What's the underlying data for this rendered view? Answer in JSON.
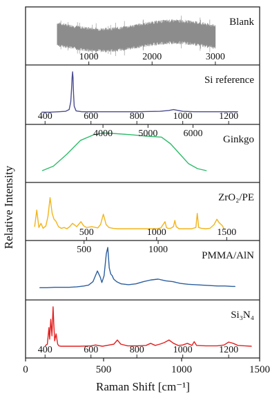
{
  "chart_data": {
    "type": "line",
    "ylabel": "Relative Intensity",
    "xlabel": "Raman Shift [cm⁻¹]",
    "bottom_axis": {
      "ticks": [
        0,
        500,
        1000,
        1500
      ],
      "xlim": [
        0,
        1500
      ]
    },
    "panels": [
      {
        "name": "Blank",
        "label": "Blank",
        "color": "#8c8c8c",
        "style": "noise",
        "top_ticks": [],
        "bottom_ticks": [
          1000,
          2000,
          3000
        ],
        "xlim": [
          0,
          3700
        ],
        "x_range": [
          500,
          3000
        ],
        "ylim": [
          0,
          1
        ]
      },
      {
        "name": "Si reference",
        "label": "Si reference",
        "color": "#4b4b8f",
        "top_ticks": [],
        "bottom_ticks": [
          400,
          600,
          800,
          1000,
          1200
        ],
        "xlim": [
          315,
          1335
        ],
        "ylim": [
          0,
          1
        ],
        "x": [
          385,
          420,
          460,
          490,
          505,
          512,
          516,
          518,
          520,
          522,
          524,
          527,
          535,
          560,
          600,
          700,
          800,
          900,
          940,
          960,
          980,
          1000,
          1050,
          1100,
          1150,
          1200,
          1240
        ],
        "y": [
          0.06,
          0.06,
          0.07,
          0.08,
          0.12,
          0.3,
          0.65,
          0.88,
          1.0,
          0.86,
          0.5,
          0.2,
          0.09,
          0.07,
          0.07,
          0.07,
          0.07,
          0.08,
          0.1,
          0.12,
          0.1,
          0.08,
          0.07,
          0.07,
          0.07,
          0.07,
          0.07
        ]
      },
      {
        "name": "Ginkgo",
        "label": "Ginkgo",
        "color": "#2dbb6a",
        "top_ticks": [
          4000,
          5000,
          6000
        ],
        "bottom_ticks": [],
        "xlim": [
          2280,
          7480
        ],
        "ylim": [
          0,
          1
        ],
        "x": [
          2650,
          2900,
          3200,
          3500,
          3800,
          4000,
          4200,
          4600,
          5000,
          5300,
          5500,
          5700,
          5900,
          6100,
          6300
        ],
        "y": [
          0.05,
          0.16,
          0.45,
          0.78,
          0.92,
          0.96,
          0.95,
          0.92,
          0.88,
          0.86,
          0.7,
          0.46,
          0.22,
          0.1,
          0.05
        ]
      },
      {
        "name": "ZrO₂/PE",
        "label": "ZrO₂/PE",
        "color": "#f2b419",
        "top_ticks": [],
        "bottom_ticks": [
          500,
          1000,
          1500
        ],
        "xlim": [
          65,
          1735
        ],
        "ylim": [
          0,
          1
        ],
        "x": [
          130,
          145,
          160,
          175,
          190,
          210,
          225,
          240,
          255,
          268,
          280,
          300,
          320,
          340,
          360,
          380,
          400,
          430,
          460,
          480,
          500,
          540,
          580,
          600,
          620,
          640,
          660,
          690,
          720,
          760,
          800,
          850,
          900,
          960,
          1000,
          1030,
          1060,
          1070,
          1080,
          1100,
          1120,
          1130,
          1140,
          1160,
          1200,
          1250,
          1280,
          1290,
          1300,
          1320,
          1350,
          1380,
          1410,
          1430,
          1445,
          1470,
          1480
        ],
        "y": [
          0.1,
          0.5,
          0.08,
          0.18,
          0.06,
          0.12,
          0.35,
          0.8,
          0.42,
          0.28,
          0.24,
          0.1,
          0.06,
          0.08,
          0.05,
          0.1,
          0.18,
          0.1,
          0.22,
          0.12,
          0.08,
          0.1,
          0.07,
          0.15,
          0.4,
          0.15,
          0.08,
          0.06,
          0.05,
          0.05,
          0.05,
          0.05,
          0.05,
          0.05,
          0.05,
          0.07,
          0.22,
          0.08,
          0.06,
          0.06,
          0.1,
          0.25,
          0.1,
          0.05,
          0.05,
          0.05,
          0.08,
          0.42,
          0.08,
          0.06,
          0.05,
          0.06,
          0.15,
          0.28,
          0.2,
          0.12,
          0.05
        ]
      },
      {
        "name": "PMMA/AlN",
        "label": "PMMA/AlN",
        "color": "#2a5e9e",
        "top_ticks": [
          500,
          1000
        ],
        "bottom_ticks": [],
        "xlim": [
          105,
          1685
        ],
        "ylim": [
          0,
          1
        ],
        "x": [
          200,
          250,
          300,
          350,
          400,
          450,
          500,
          530,
          560,
          590,
          610,
          620,
          635,
          650,
          660,
          670,
          680,
          690,
          700,
          720,
          750,
          800,
          850,
          900,
          950,
          1000,
          1050,
          1100,
          1150,
          1200,
          1300,
          1400,
          1450,
          1500,
          1520
        ],
        "y": [
          0.06,
          0.06,
          0.07,
          0.07,
          0.07,
          0.08,
          0.1,
          0.12,
          0.2,
          0.45,
          0.3,
          0.18,
          0.34,
          0.85,
          1.0,
          0.52,
          0.38,
          0.34,
          0.26,
          0.2,
          0.15,
          0.13,
          0.15,
          0.2,
          0.24,
          0.26,
          0.22,
          0.2,
          0.16,
          0.14,
          0.12,
          0.1,
          0.1,
          0.09,
          0.09
        ]
      },
      {
        "name": "Si₃N₄",
        "label": "Si₃N₄",
        "color": "#e31f1f",
        "top_ticks": [],
        "bottom_ticks": [
          400,
          600,
          800,
          1000,
          1200
        ],
        "xlim": [
          315,
          1335
        ],
        "ylim": [
          0,
          1
        ],
        "x": [
          400,
          410,
          417,
          420,
          425,
          430,
          435,
          438,
          442,
          448,
          455,
          460,
          470,
          500,
          550,
          600,
          620,
          650,
          680,
          700,
          715,
          730,
          760,
          800,
          840,
          860,
          880,
          900,
          920,
          940,
          960,
          980,
          1000,
          1020,
          1040,
          1050,
          1060,
          1100,
          1150,
          1180,
          1200,
          1220,
          1240,
          1270,
          1300
        ],
        "y": [
          0.06,
          0.1,
          0.5,
          0.22,
          0.7,
          0.3,
          1.0,
          0.6,
          0.18,
          0.35,
          0.1,
          0.06,
          0.05,
          0.05,
          0.05,
          0.06,
          0.08,
          0.05,
          0.08,
          0.1,
          0.2,
          0.1,
          0.06,
          0.06,
          0.07,
          0.12,
          0.07,
          0.1,
          0.14,
          0.2,
          0.12,
          0.07,
          0.08,
          0.12,
          0.07,
          0.16,
          0.07,
          0.06,
          0.06,
          0.08,
          0.15,
          0.12,
          0.07,
          0.06,
          0.05
        ]
      }
    ]
  }
}
